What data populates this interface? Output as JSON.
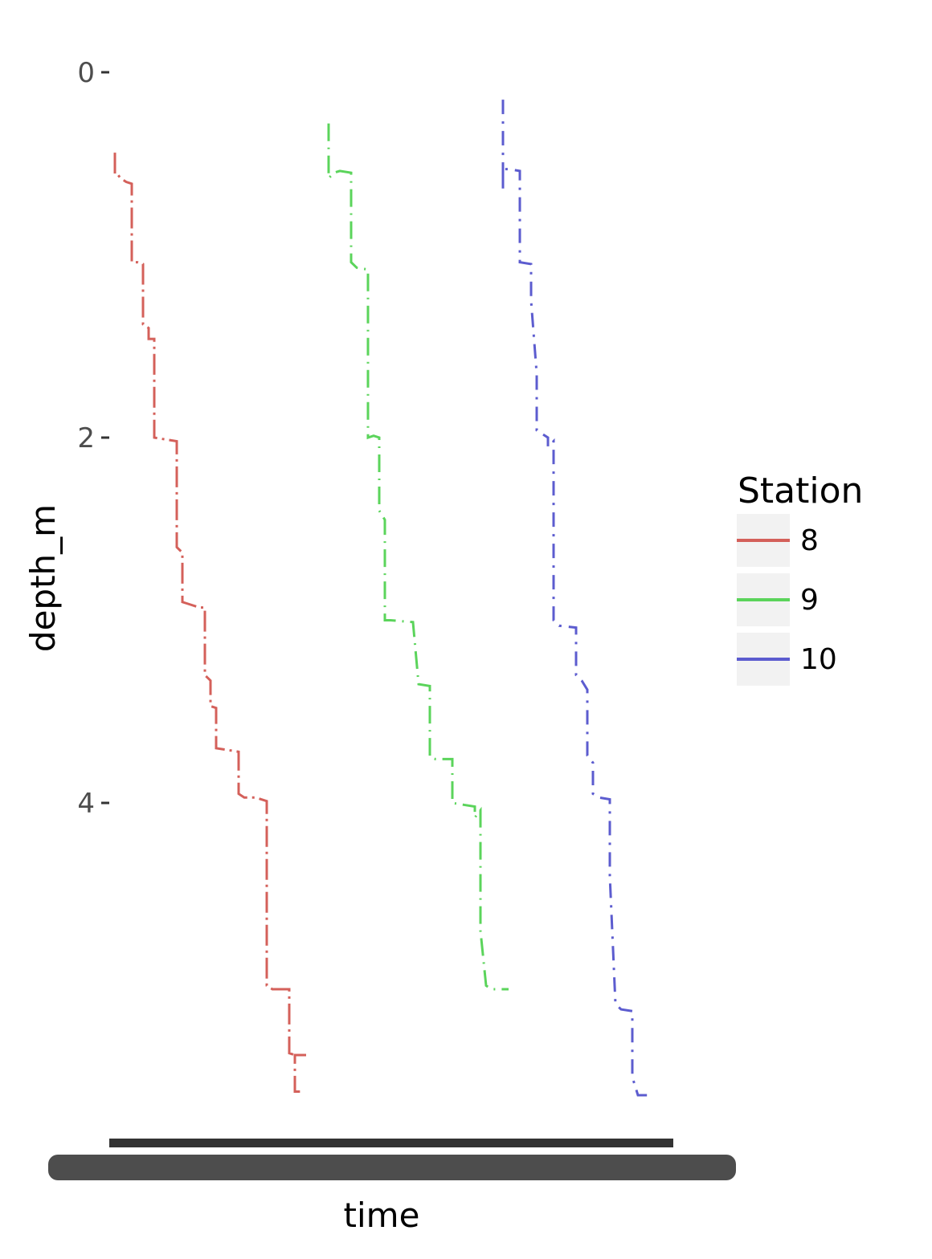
{
  "chart_data": {
    "type": "line",
    "title": "",
    "xlabel": "time",
    "ylabel": "depth_m",
    "y_axis_reversed": true,
    "ylim": [
      0,
      5.85
    ],
    "y_ticks": [
      0,
      2,
      4
    ],
    "x_range": [
      0,
      100
    ],
    "x_tick_labels_overplotted": true,
    "grid": false,
    "legend": {
      "title": "Station",
      "position": "right"
    },
    "series": [
      {
        "name": "8",
        "color": "#d4605a",
        "points": [
          [
            1,
            0.44
          ],
          [
            1,
            0.56
          ],
          [
            1.5,
            0.56
          ],
          [
            2,
            0.58
          ],
          [
            3,
            0.6
          ],
          [
            4,
            0.61
          ],
          [
            4,
            1.04
          ],
          [
            5,
            1.04
          ],
          [
            6,
            1.05
          ],
          [
            6,
            1.38
          ],
          [
            7,
            1.4
          ],
          [
            7,
            1.46
          ],
          [
            8,
            1.46
          ],
          [
            8,
            2.0
          ],
          [
            10,
            2.01
          ],
          [
            12,
            2.02
          ],
          [
            12,
            2.6
          ],
          [
            13,
            2.63
          ],
          [
            13,
            2.9
          ],
          [
            14,
            2.91
          ],
          [
            16,
            2.93
          ],
          [
            17,
            2.93
          ],
          [
            17,
            3.3
          ],
          [
            18,
            3.33
          ],
          [
            18,
            3.47
          ],
          [
            19,
            3.48
          ],
          [
            19,
            3.7
          ],
          [
            21,
            3.71
          ],
          [
            23,
            3.72
          ],
          [
            23,
            3.95
          ],
          [
            24,
            3.97
          ],
          [
            26,
            3.97
          ],
          [
            28,
            3.99
          ],
          [
            28,
            5.0
          ],
          [
            29,
            5.02
          ],
          [
            32,
            5.02
          ],
          [
            32,
            5.37
          ],
          [
            33,
            5.38
          ],
          [
            35,
            5.38
          ],
          [
            33,
            5.38
          ],
          [
            33,
            5.58
          ],
          [
            34,
            5.58
          ]
        ]
      },
      {
        "name": "9",
        "color": "#5bd45b",
        "points": [
          [
            39,
            0.28
          ],
          [
            39,
            0.55
          ],
          [
            39,
            0.58
          ],
          [
            40,
            0.55
          ],
          [
            41,
            0.54
          ],
          [
            43,
            0.55
          ],
          [
            43,
            1.04
          ],
          [
            44,
            1.07
          ],
          [
            46,
            1.08
          ],
          [
            46,
            2.0
          ],
          [
            47,
            1.99
          ],
          [
            48,
            2.0
          ],
          [
            48,
            2.4
          ],
          [
            49,
            2.45
          ],
          [
            49,
            3.0
          ],
          [
            50,
            3.0
          ],
          [
            54,
            3.01
          ],
          [
            55,
            3.35
          ],
          [
            57,
            3.36
          ],
          [
            57,
            3.75
          ],
          [
            58,
            3.76
          ],
          [
            61,
            3.76
          ],
          [
            61,
            4.0
          ],
          [
            63,
            4.01
          ],
          [
            65,
            4.02
          ],
          [
            65,
            4.08
          ],
          [
            66,
            4.04
          ],
          [
            66,
            4.7
          ],
          [
            67,
            5.0
          ],
          [
            68,
            5.02
          ],
          [
            71,
            5.02
          ]
        ]
      },
      {
        "name": "10",
        "color": "#5c5ccf",
        "points": [
          [
            70,
            0.15
          ],
          [
            70,
            0.65
          ],
          [
            70,
            0.53
          ],
          [
            71,
            0.53
          ],
          [
            73,
            0.54
          ],
          [
            73,
            1.04
          ],
          [
            75,
            1.05
          ],
          [
            75,
            1.25
          ],
          [
            76,
            1.65
          ],
          [
            76,
            1.96
          ],
          [
            77,
            1.98
          ],
          [
            78,
            2.0
          ],
          [
            78,
            2.05
          ],
          [
            79,
            2.02
          ],
          [
            79,
            3.0
          ],
          [
            80,
            3.03
          ],
          [
            83,
            3.04
          ],
          [
            83,
            3.3
          ],
          [
            84,
            3.33
          ],
          [
            85,
            3.38
          ],
          [
            85,
            3.74
          ],
          [
            86,
            3.78
          ],
          [
            86,
            3.95
          ],
          [
            87,
            3.97
          ],
          [
            89,
            3.98
          ],
          [
            89,
            4.4
          ],
          [
            90,
            5.1
          ],
          [
            91,
            5.13
          ],
          [
            93,
            5.14
          ],
          [
            93,
            5.5
          ],
          [
            94,
            5.6
          ],
          [
            96,
            5.6
          ]
        ]
      }
    ]
  }
}
